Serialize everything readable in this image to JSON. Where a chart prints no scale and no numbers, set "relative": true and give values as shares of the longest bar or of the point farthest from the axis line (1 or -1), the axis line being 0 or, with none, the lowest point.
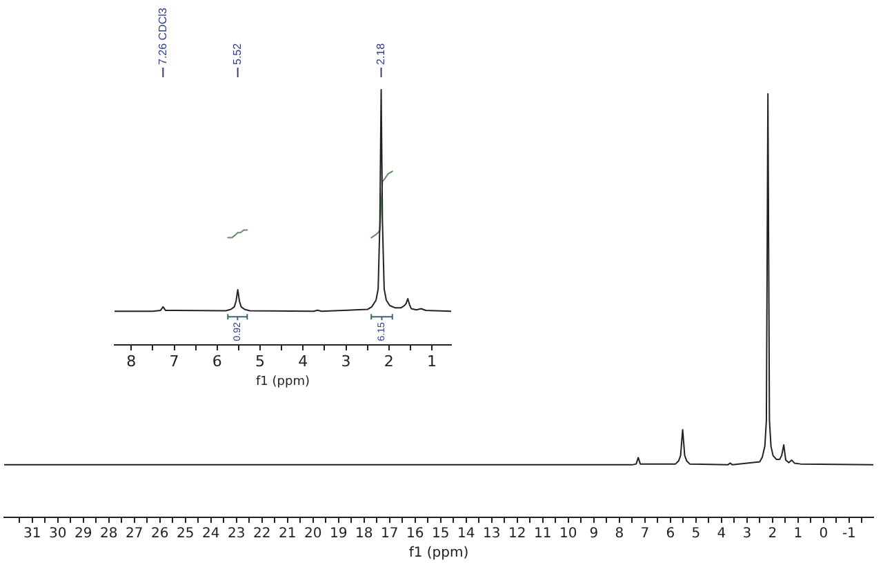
{
  "chart_data": [
    {
      "type": "line",
      "xlabel": "f1 (ppm)",
      "relative": true,
      "x": [
        32.1,
        7.5,
        7.34,
        7.26,
        7.18,
        5.8,
        5.68,
        5.6,
        5.52,
        5.44,
        5.36,
        5.24,
        3.75,
        3.66,
        3.57,
        2.5,
        2.4,
        2.3,
        2.24,
        2.18,
        2.12,
        2.06,
        1.98,
        1.85,
        1.72,
        1.64,
        1.56,
        1.48,
        1.36,
        1.25,
        1.14,
        0.9,
        -1.95
      ],
      "series": [
        {
          "color": "#222222",
          "values": [
            0.124,
            0.124,
            0.126,
            0.141,
            0.126,
            0.126,
            0.133,
            0.146,
            0.207,
            0.146,
            0.133,
            0.126,
            0.124,
            0.128,
            0.124,
            0.131,
            0.142,
            0.168,
            0.229,
            1,
            0.229,
            0.168,
            0.146,
            0.137,
            0.137,
            0.146,
            0.171,
            0.135,
            0.129,
            0.135,
            0.128,
            0.126,
            0.124
          ]
        }
      ],
      "xlim": [
        32.1,
        -1.95
      ],
      "xticks": [
        {
          "value": 31.5,
          "label": null
        },
        31,
        {
          "value": 30.5,
          "label": null
        },
        30,
        {
          "value": 29.5,
          "label": null
        },
        29,
        {
          "value": 28.5,
          "label": null
        },
        28,
        {
          "value": 27.5,
          "label": null
        },
        27,
        {
          "value": 26.5,
          "label": null
        },
        26,
        {
          "value": 25.5,
          "label": null
        },
        25,
        {
          "value": 24.5,
          "label": null
        },
        24,
        {
          "value": 23.5,
          "label": null
        },
        23,
        {
          "value": 22.5,
          "label": null
        },
        22,
        {
          "value": 21.5,
          "label": null
        },
        21,
        {
          "value": 20.5,
          "label": null
        },
        20,
        {
          "value": 19.5,
          "label": null
        },
        19,
        {
          "value": 18.5,
          "label": null
        },
        18,
        {
          "value": 17.5,
          "label": null
        },
        17,
        {
          "value": 16.5,
          "label": null
        },
        16,
        {
          "value": 15.5,
          "label": null
        },
        15,
        {
          "value": 14.5,
          "label": null
        },
        14,
        {
          "value": 13.5,
          "label": null
        },
        13,
        {
          "value": 12.5,
          "label": null
        },
        12,
        {
          "value": 11.5,
          "label": null
        },
        11,
        {
          "value": 10.5,
          "label": null
        },
        10,
        {
          "value": 9.5,
          "label": null
        },
        9,
        {
          "value": 8.5,
          "label": null
        },
        8,
        {
          "value": 7.5,
          "label": null
        },
        7,
        {
          "value": 6.5,
          "label": null
        },
        6,
        {
          "value": 5.5,
          "label": null
        },
        5,
        {
          "value": 4.5,
          "label": null
        },
        4,
        {
          "value": 3.5,
          "label": null
        },
        3,
        {
          "value": 2.5,
          "label": null
        },
        2,
        {
          "value": 1.5,
          "label": null
        },
        1,
        {
          "value": 0.5,
          "label": null
        },
        0,
        {
          "value": -0.5,
          "label": null
        },
        -1,
        {
          "value": -1.5,
          "label": null
        }
      ]
    },
    {
      "type": "line",
      "xlabel": "f1 (ppm)",
      "relative": true,
      "x": [
        8.39,
        7.5,
        7.32,
        7.26,
        7.2,
        5.8,
        5.68,
        5.6,
        5.56,
        5.52,
        5.48,
        5.44,
        5.36,
        5.24,
        3.75,
        3.66,
        3.57,
        2.5,
        2.4,
        2.3,
        2.25,
        2.21,
        2.18,
        2.15,
        2.11,
        2.06,
        1.98,
        1.85,
        1.72,
        1.64,
        1.6,
        1.56,
        1.52,
        1.48,
        1.36,
        1.25,
        1.14,
        0.9,
        0.55
      ],
      "series": [
        {
          "color": "#222222",
          "values": [
            0.132,
            0.132,
            0.135,
            0.149,
            0.135,
            0.134,
            0.139,
            0.149,
            0.171,
            0.216,
            0.171,
            0.149,
            0.139,
            0.134,
            0.132,
            0.136,
            0.132,
            0.139,
            0.149,
            0.175,
            0.219,
            0.479,
            1,
            0.479,
            0.219,
            0.175,
            0.154,
            0.145,
            0.145,
            0.154,
            0.162,
            0.181,
            0.158,
            0.142,
            0.137,
            0.142,
            0.135,
            0.134,
            0.132
          ]
        },
        {
          "color": "#5e8f5e",
          "x": [
            5.75,
            5.66,
            5.58,
            5.52,
            5.46,
            5.38,
            5.3
          ],
          "values": [
            0.42,
            0.42,
            0.43,
            0.44,
            0.44,
            0.45,
            0.45
          ]
        },
        {
          "color": "#5e8f5e",
          "x": [
            2.41,
            2.32,
            2.25,
            2.21,
            2.18,
            2.15,
            2.1,
            2.02,
            1.92
          ],
          "values": [
            0.42,
            0.43,
            0.44,
            0.45,
            0.55,
            0.64,
            0.65,
            0.67,
            0.68
          ]
        }
      ],
      "xlim": [
        8.39,
        0.55
      ],
      "xticks": [
        8,
        {
          "value": 7.5,
          "label": null
        },
        7,
        {
          "value": 6.5,
          "label": null
        },
        6,
        {
          "value": 5.5,
          "label": null
        },
        5,
        {
          "value": 4.5,
          "label": null
        },
        4,
        {
          "value": 3.5,
          "label": null
        },
        3,
        {
          "value": 2.5,
          "label": null
        },
        2,
        {
          "value": 1.5,
          "label": null
        },
        1
      ],
      "annotations": [
        {
          "text": "7.26 CDCl3",
          "x": 7.26
        },
        {
          "text": "5.52",
          "x": 5.52
        },
        {
          "text": "2.18",
          "x": 2.18
        },
        "0.92",
        "6.15"
      ]
    }
  ]
}
